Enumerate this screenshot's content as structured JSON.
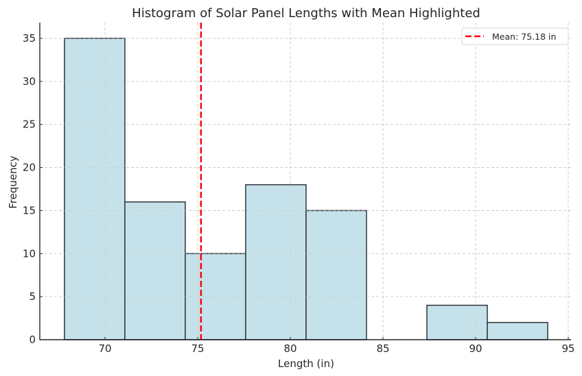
{
  "chart_data": {
    "type": "bar",
    "subtype": "histogram",
    "title": "Histogram of Solar Panel Lengths with Mean Highlighted",
    "xlabel": "Length (in)",
    "ylabel": "Frequency",
    "xlim": [
      66.6,
      95.2
    ],
    "ylim": [
      0,
      36.8
    ],
    "xticks": [
      70,
      75,
      80,
      85,
      90,
      95
    ],
    "yticks": [
      0,
      5,
      10,
      15,
      20,
      25,
      30,
      35
    ],
    "bin_edges": [
      67.81,
      71.07,
      74.33,
      77.59,
      80.85,
      84.11,
      87.37,
      90.63,
      93.89
    ],
    "categories": [
      "67.8–71.1",
      "71.1–74.3",
      "74.3–77.6",
      "77.6–80.9",
      "80.9–84.1",
      "84.1–87.4",
      "87.4–90.6",
      "90.6–93.9"
    ],
    "values": [
      35,
      16,
      10,
      18,
      15,
      0,
      4,
      2
    ],
    "mean_line": {
      "x": 75.18,
      "label": "Mean: 75.18 in",
      "color": "#ff0000",
      "style": "dashed"
    },
    "bar_color": "#add8e6",
    "bar_edge_color": "#000000",
    "grid": true,
    "legend_position": "upper right"
  },
  "colors": {
    "bar_fill": "#c5e2eb",
    "bar_edge": "#3a3f42",
    "mean": "#ff0000",
    "grid": "#c8c8c8",
    "axis": "#262626"
  }
}
